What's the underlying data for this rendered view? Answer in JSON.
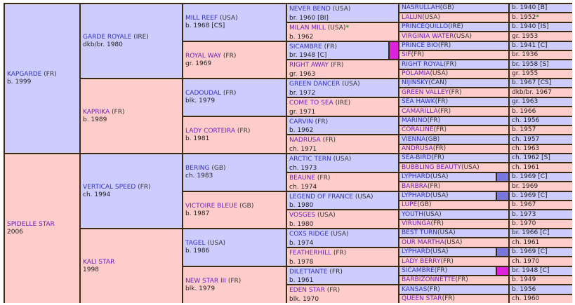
{
  "pedigree": {
    "gen1": [
      {
        "name": "KAPGARDE",
        "country": "(FR)",
        "info": "b. 1999",
        "sex": "m"
      },
      {
        "name": "SPIDELLE STAR",
        "country": "",
        "info": "2006",
        "sex": "f"
      }
    ],
    "gen2": [
      {
        "name": "GARDE ROYALE",
        "country": "(IRE)",
        "info": "dkb/br. 1980",
        "sex": "m"
      },
      {
        "name": "KAPRIKA",
        "country": "(FR)",
        "info": "b. 1989",
        "sex": "f"
      },
      {
        "name": "VERTICAL SPEED",
        "country": "(FR)",
        "info": "ch. 1994",
        "sex": "m"
      },
      {
        "name": "KALI STAR",
        "country": "",
        "info": "1998",
        "sex": "f"
      }
    ],
    "gen3": [
      {
        "name": "MILL REEF",
        "country": "(USA)",
        "info": "b. 1968 [CS]",
        "sex": "m"
      },
      {
        "name": "ROYAL WAY",
        "country": "(FR)",
        "info": "gr. 1969",
        "sex": "f"
      },
      {
        "name": "CADOUDAL",
        "country": "(FR)",
        "info": "blk. 1979",
        "sex": "m"
      },
      {
        "name": "LADY CORTEIRA",
        "country": "(FR)",
        "info": "b. 1981",
        "sex": "f"
      },
      {
        "name": "BERING",
        "country": "(GB)",
        "info": "ch. 1983",
        "sex": "m"
      },
      {
        "name": "VICTOIRE BLEUE",
        "country": "(GB)",
        "info": "b. 1987",
        "sex": "f"
      },
      {
        "name": "TAGEL",
        "country": "(USA)",
        "info": "b. 1986",
        "sex": "m"
      },
      {
        "name": "NEW STAR III",
        "country": "(FR)",
        "info": "blk. 1979",
        "sex": "f"
      }
    ],
    "gen4": [
      {
        "name": "NEVER BEND",
        "country": "(USA)",
        "info": "br. 1960 [BI]",
        "sex": "m",
        "star": "",
        "swatch": ""
      },
      {
        "name": "MILAN MILL",
        "country": "(USA)",
        "info": "b. 1962",
        "sex": "f",
        "star": "*",
        "swatch": ""
      },
      {
        "name": "SICAMBRE",
        "country": "(FR)",
        "info": "br. 1948 [C]",
        "sex": "m",
        "star": "",
        "swatch": "#dd22dd"
      },
      {
        "name": "RIGHT AWAY",
        "country": "(FR)",
        "info": "gr. 1963",
        "sex": "f",
        "star": "",
        "swatch": ""
      },
      {
        "name": "GREEN DANCER",
        "country": "(USA)",
        "info": "br. 1972",
        "sex": "m",
        "star": "",
        "swatch": ""
      },
      {
        "name": "COME TO SEA",
        "country": "(IRE)",
        "info": "gr. 1971",
        "sex": "f",
        "star": "",
        "swatch": ""
      },
      {
        "name": "CARVIN",
        "country": "(FR)",
        "info": "b. 1962",
        "sex": "m",
        "star": "",
        "swatch": ""
      },
      {
        "name": "NADRUSA",
        "country": "(FR)",
        "info": "ch. 1971",
        "sex": "f",
        "star": "",
        "swatch": ""
      },
      {
        "name": "ARCTIC TERN",
        "country": "(USA)",
        "info": "ch. 1973",
        "sex": "m",
        "star": "",
        "swatch": ""
      },
      {
        "name": "BEAUNE",
        "country": "(FR)",
        "info": "ch. 1974",
        "sex": "f",
        "star": "",
        "swatch": ""
      },
      {
        "name": "LEGEND OF FRANCE",
        "country": "(USA)",
        "info": "b. 1980",
        "sex": "m",
        "star": "",
        "swatch": ""
      },
      {
        "name": "VOSGES",
        "country": "(USA)",
        "info": "b. 1980",
        "sex": "f",
        "star": "",
        "swatch": ""
      },
      {
        "name": "COXS RIDGE",
        "country": "(USA)",
        "info": "b. 1974",
        "sex": "m",
        "star": "",
        "swatch": ""
      },
      {
        "name": "FEATHERHILL",
        "country": "(FR)",
        "info": "b. 1978",
        "sex": "f",
        "star": "",
        "swatch": ""
      },
      {
        "name": "DILETTANTE",
        "country": "(FR)",
        "info": "b. 1961",
        "sex": "m",
        "star": "",
        "swatch": ""
      },
      {
        "name": "EDEN STAR",
        "country": "(FR)",
        "info": "blk. 1970",
        "sex": "f",
        "star": "",
        "swatch": ""
      }
    ],
    "gen5": [
      {
        "name": "NASRULLAH",
        "country": "(GB)",
        "info": "b. 1940 [B]",
        "sex": "m",
        "star": "",
        "swatch": ""
      },
      {
        "name": "LALUN",
        "country": "(USA)",
        "info": "b. 1952",
        "sex": "f",
        "star": "*",
        "swatch": ""
      },
      {
        "name": "PRINCEQUILLO",
        "country": "(IRE)",
        "info": "b. 1940 [IS]",
        "sex": "m",
        "star": "",
        "swatch": ""
      },
      {
        "name": "VIRGINIA WATER",
        "country": "(USA)",
        "info": "gr. 1953",
        "sex": "f",
        "star": "",
        "swatch": ""
      },
      {
        "name": "PRINCE BIO",
        "country": "(FR)",
        "info": "b. 1941 [C]",
        "sex": "m",
        "star": "",
        "swatch": ""
      },
      {
        "name": "SIF",
        "country": "(FR)",
        "info": "br. 1936",
        "sex": "f",
        "star": "",
        "swatch": ""
      },
      {
        "name": "RIGHT ROYAL",
        "country": "(FR)",
        "info": "br. 1958 [S]",
        "sex": "m",
        "star": "",
        "swatch": ""
      },
      {
        "name": "POLAMIA",
        "country": "(USA)",
        "info": "gr. 1955",
        "sex": "f",
        "star": "",
        "swatch": ""
      },
      {
        "name": "NIJINSKY",
        "country": "(CAN)",
        "info": "b. 1967 [CS]",
        "sex": "m",
        "star": "",
        "swatch": ""
      },
      {
        "name": "GREEN VALLEY",
        "country": "(FR)",
        "info": "dkb/br. 1967",
        "sex": "f",
        "star": "",
        "swatch": ""
      },
      {
        "name": "SEA HAWK",
        "country": "(FR)",
        "info": "gr. 1963",
        "sex": "m",
        "star": "",
        "swatch": ""
      },
      {
        "name": "CAMARILLA",
        "country": "(FR)",
        "info": "b. 1966",
        "sex": "f",
        "star": "",
        "swatch": ""
      },
      {
        "name": "MARINO",
        "country": "(FR)",
        "info": "ch. 1956",
        "sex": "m",
        "star": "",
        "swatch": ""
      },
      {
        "name": "CORALINE",
        "country": "(FR)",
        "info": "b. 1957",
        "sex": "f",
        "star": "",
        "swatch": ""
      },
      {
        "name": "VIENNA",
        "country": "(GB)",
        "info": "ch. 1957",
        "sex": "m",
        "star": "",
        "swatch": ""
      },
      {
        "name": "ANDRUSA",
        "country": "(FR)",
        "info": "ch. 1963",
        "sex": "f",
        "star": "",
        "swatch": ""
      },
      {
        "name": "SEA-BIRD",
        "country": "(FR)",
        "info": "ch. 1962 [S]",
        "sex": "m",
        "star": "",
        "swatch": ""
      },
      {
        "name": "BUBBLING BEAUTY",
        "country": "(USA)",
        "info": "ch. 1961",
        "sex": "f",
        "star": "",
        "swatch": ""
      },
      {
        "name": "LYPHARD",
        "country": "(USA)",
        "info": "b. 1969 [C]",
        "sex": "m",
        "star": "",
        "swatch": "#7777dd"
      },
      {
        "name": "BARBRA",
        "country": "(FR)",
        "info": "br. 1969",
        "sex": "f",
        "star": "",
        "swatch": ""
      },
      {
        "name": "LYPHARD",
        "country": "(USA)",
        "info": "b. 1969 [C]",
        "sex": "m",
        "star": "",
        "swatch": "#7777dd"
      },
      {
        "name": "LUPE",
        "country": "(GB)",
        "info": "b. 1967",
        "sex": "f",
        "star": "",
        "swatch": ""
      },
      {
        "name": "YOUTH",
        "country": "(USA)",
        "info": "b. 1973",
        "sex": "m",
        "star": "",
        "swatch": ""
      },
      {
        "name": "VIRUNGA",
        "country": "(FR)",
        "info": "b. 1970",
        "sex": "f",
        "star": "",
        "swatch": ""
      },
      {
        "name": "BEST TURN",
        "country": "(USA)",
        "info": "br. 1966 [C]",
        "sex": "m",
        "star": "",
        "swatch": ""
      },
      {
        "name": "OUR MARTHA",
        "country": "(USA)",
        "info": "ch. 1961",
        "sex": "f",
        "star": "",
        "swatch": ""
      },
      {
        "name": "LYPHARD",
        "country": "(USA)",
        "info": "b. 1969 [C]",
        "sex": "m",
        "star": "",
        "swatch": "#7777dd"
      },
      {
        "name": "LADY BERRY",
        "country": "(FR)",
        "info": "ch. 1970",
        "sex": "f",
        "star": "",
        "swatch": ""
      },
      {
        "name": "SICAMBRE",
        "country": "(FR)",
        "info": "br. 1948 [C]",
        "sex": "m",
        "star": "",
        "swatch": "#dd22dd"
      },
      {
        "name": "BARBIZONNETTE",
        "country": "(FR)",
        "info": "b. 1949",
        "sex": "f",
        "star": "",
        "swatch": ""
      },
      {
        "name": "KANSAS",
        "country": "(FR)",
        "info": "b. 1956",
        "sex": "m",
        "star": "",
        "swatch": ""
      },
      {
        "name": "QUEEN STAR",
        "country": "(FR)",
        "info": "ch. 1960",
        "sex": "f",
        "star": "",
        "swatch": ""
      }
    ]
  },
  "colors": {
    "male_bg": "#ccccff",
    "female_bg": "#ffcccc",
    "border": "#3a2a12",
    "name_link": "#3333bb",
    "star": "#2a9a2a"
  }
}
